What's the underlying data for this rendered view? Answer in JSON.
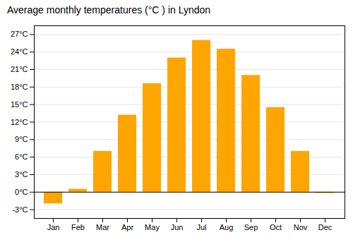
{
  "chart_data": {
    "type": "bar",
    "title": "Average monthly temperatures (°C ) in Lyndon",
    "categories": [
      "Jan",
      "Feb",
      "Mar",
      "Apr",
      "May",
      "Jun",
      "Jul",
      "Aug",
      "Sep",
      "Oct",
      "Nov",
      "Dec"
    ],
    "values": [
      -2.0,
      0.5,
      7.0,
      13.2,
      18.6,
      23.0,
      26.0,
      24.5,
      20.0,
      14.5,
      7.0,
      -0.2
    ],
    "color": "#FFA500",
    "ylim": [
      -4.5,
      28.5
    ],
    "yticks": [
      {
        "value": -3,
        "label": "-3°C"
      },
      {
        "value": 0,
        "label": "0°C"
      },
      {
        "value": 3,
        "label": "3°C"
      },
      {
        "value": 6,
        "label": "6°C"
      },
      {
        "value": 9,
        "label": "9°C"
      },
      {
        "value": 12,
        "label": "12°C"
      },
      {
        "value": 15,
        "label": "15°C"
      },
      {
        "value": 18,
        "label": "18°C"
      },
      {
        "value": 21,
        "label": "21°C"
      },
      {
        "value": 24,
        "label": "24°C"
      },
      {
        "value": 27,
        "label": "27°C"
      }
    ],
    "grid": true
  }
}
